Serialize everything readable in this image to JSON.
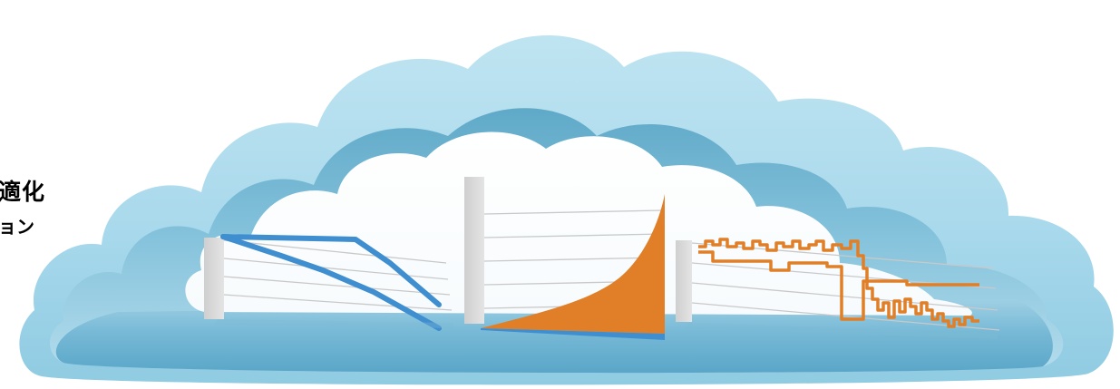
{
  "side_text": {
    "line1": "適化",
    "line2": "ョン"
  },
  "colors": {
    "cloud_outer": "#a7d8ea",
    "cloud_wall": "#8ccbe3",
    "cloud_floor": "#6fb7d6",
    "backboard": "#d4d4d4",
    "gridline": "#c8c8c8",
    "blue_series": "#3f8ed0",
    "orange_series": "#e07f27"
  },
  "panels": [
    {
      "name": "left-panel",
      "chart_type": "line",
      "description_shape": "two blue lines declining left to right"
    },
    {
      "name": "middle-panel",
      "chart_type": "area",
      "description_shape": "orange filled area rising steeply at right, thin blue band along the bottom"
    },
    {
      "name": "right-panel",
      "chart_type": "line",
      "description_shape": "two orange step lines, high and flat then dropping sharply"
    }
  ]
}
